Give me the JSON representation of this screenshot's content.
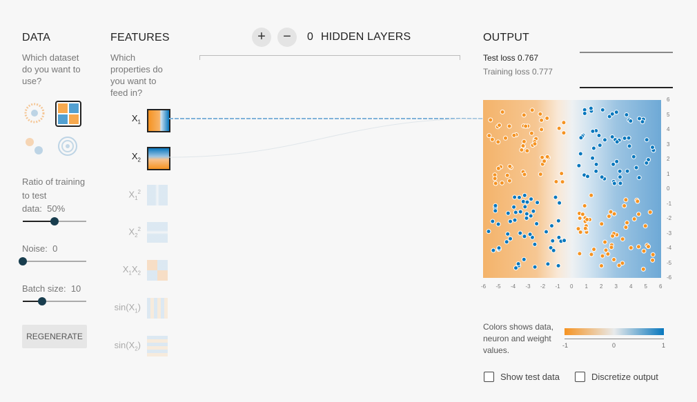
{
  "data_section": {
    "heading": "DATA",
    "question": "Which dataset do you want to use?",
    "datasets": [
      "circle-dataset-icon",
      "clusters-dataset-icon",
      "gaussian-dataset-icon",
      "spiral-dataset-icon"
    ],
    "selected_dataset": "clusters-dataset-icon",
    "ratio_label_1": "Ratio of training to test",
    "ratio_label_2": "data:",
    "ratio_value": "50%",
    "ratio_fraction": 0.5,
    "noise_label": "Noise:",
    "noise_value": "0",
    "noise_fraction": 0,
    "batch_label": "Batch size:",
    "batch_value": "10",
    "batch_fraction": 0.3,
    "regenerate_label": "REGENERATE"
  },
  "features_section": {
    "heading": "FEATURES",
    "question": "Which properties do you want to feed in?",
    "features": [
      {
        "base": "X",
        "sub": "1",
        "sup": "",
        "active": true,
        "icon": "x1-feature-icon"
      },
      {
        "base": "X",
        "sub": "2",
        "sup": "",
        "active": true,
        "icon": "x2-feature-icon"
      },
      {
        "base": "X",
        "sub": "1",
        "sup": "2",
        "active": false,
        "icon": "x1-squared-feature-icon"
      },
      {
        "base": "X",
        "sub": "2",
        "sup": "2",
        "active": false,
        "icon": "x2-squared-feature-icon"
      },
      {
        "base": "X",
        "sub": "1",
        "base2": "X",
        "sub2": "2",
        "active": false,
        "icon": "x1x2-feature-icon"
      },
      {
        "base": "sin(X",
        "sub": "1",
        "tail": ")",
        "active": false,
        "icon": "sin-x1-feature-icon"
      },
      {
        "base": "sin(X",
        "sub": "2",
        "tail": ")",
        "active": false,
        "icon": "sin-x2-feature-icon"
      }
    ]
  },
  "hidden_layers": {
    "add_label": "+",
    "remove_label": "−",
    "count": "0",
    "label": "HIDDEN LAYERS"
  },
  "output_section": {
    "heading": "OUTPUT",
    "test_loss_label": "Test loss",
    "test_loss_value": "0.767",
    "training_loss_label": "Training loss",
    "training_loss_value": "0.777",
    "y_ticks": [
      "6",
      "5",
      "4",
      "3",
      "2",
      "1",
      "0",
      "-1",
      "-2",
      "-3",
      "-4",
      "-5",
      "-6"
    ],
    "x_ticks": [
      "-6",
      "-5",
      "-4",
      "-3",
      "-2",
      "-1",
      "0",
      "1",
      "2",
      "3",
      "4",
      "5",
      "6"
    ],
    "legend_text": "Colors shows data, neuron and weight values.",
    "legend_ticks": [
      "-1",
      "0",
      "1"
    ],
    "show_test_label": "Show test data",
    "discretize_label": "Discretize output"
  },
  "colors": {
    "orange": "#f59322",
    "blue": "#0877bd",
    "light": "#e8eaeb"
  }
}
